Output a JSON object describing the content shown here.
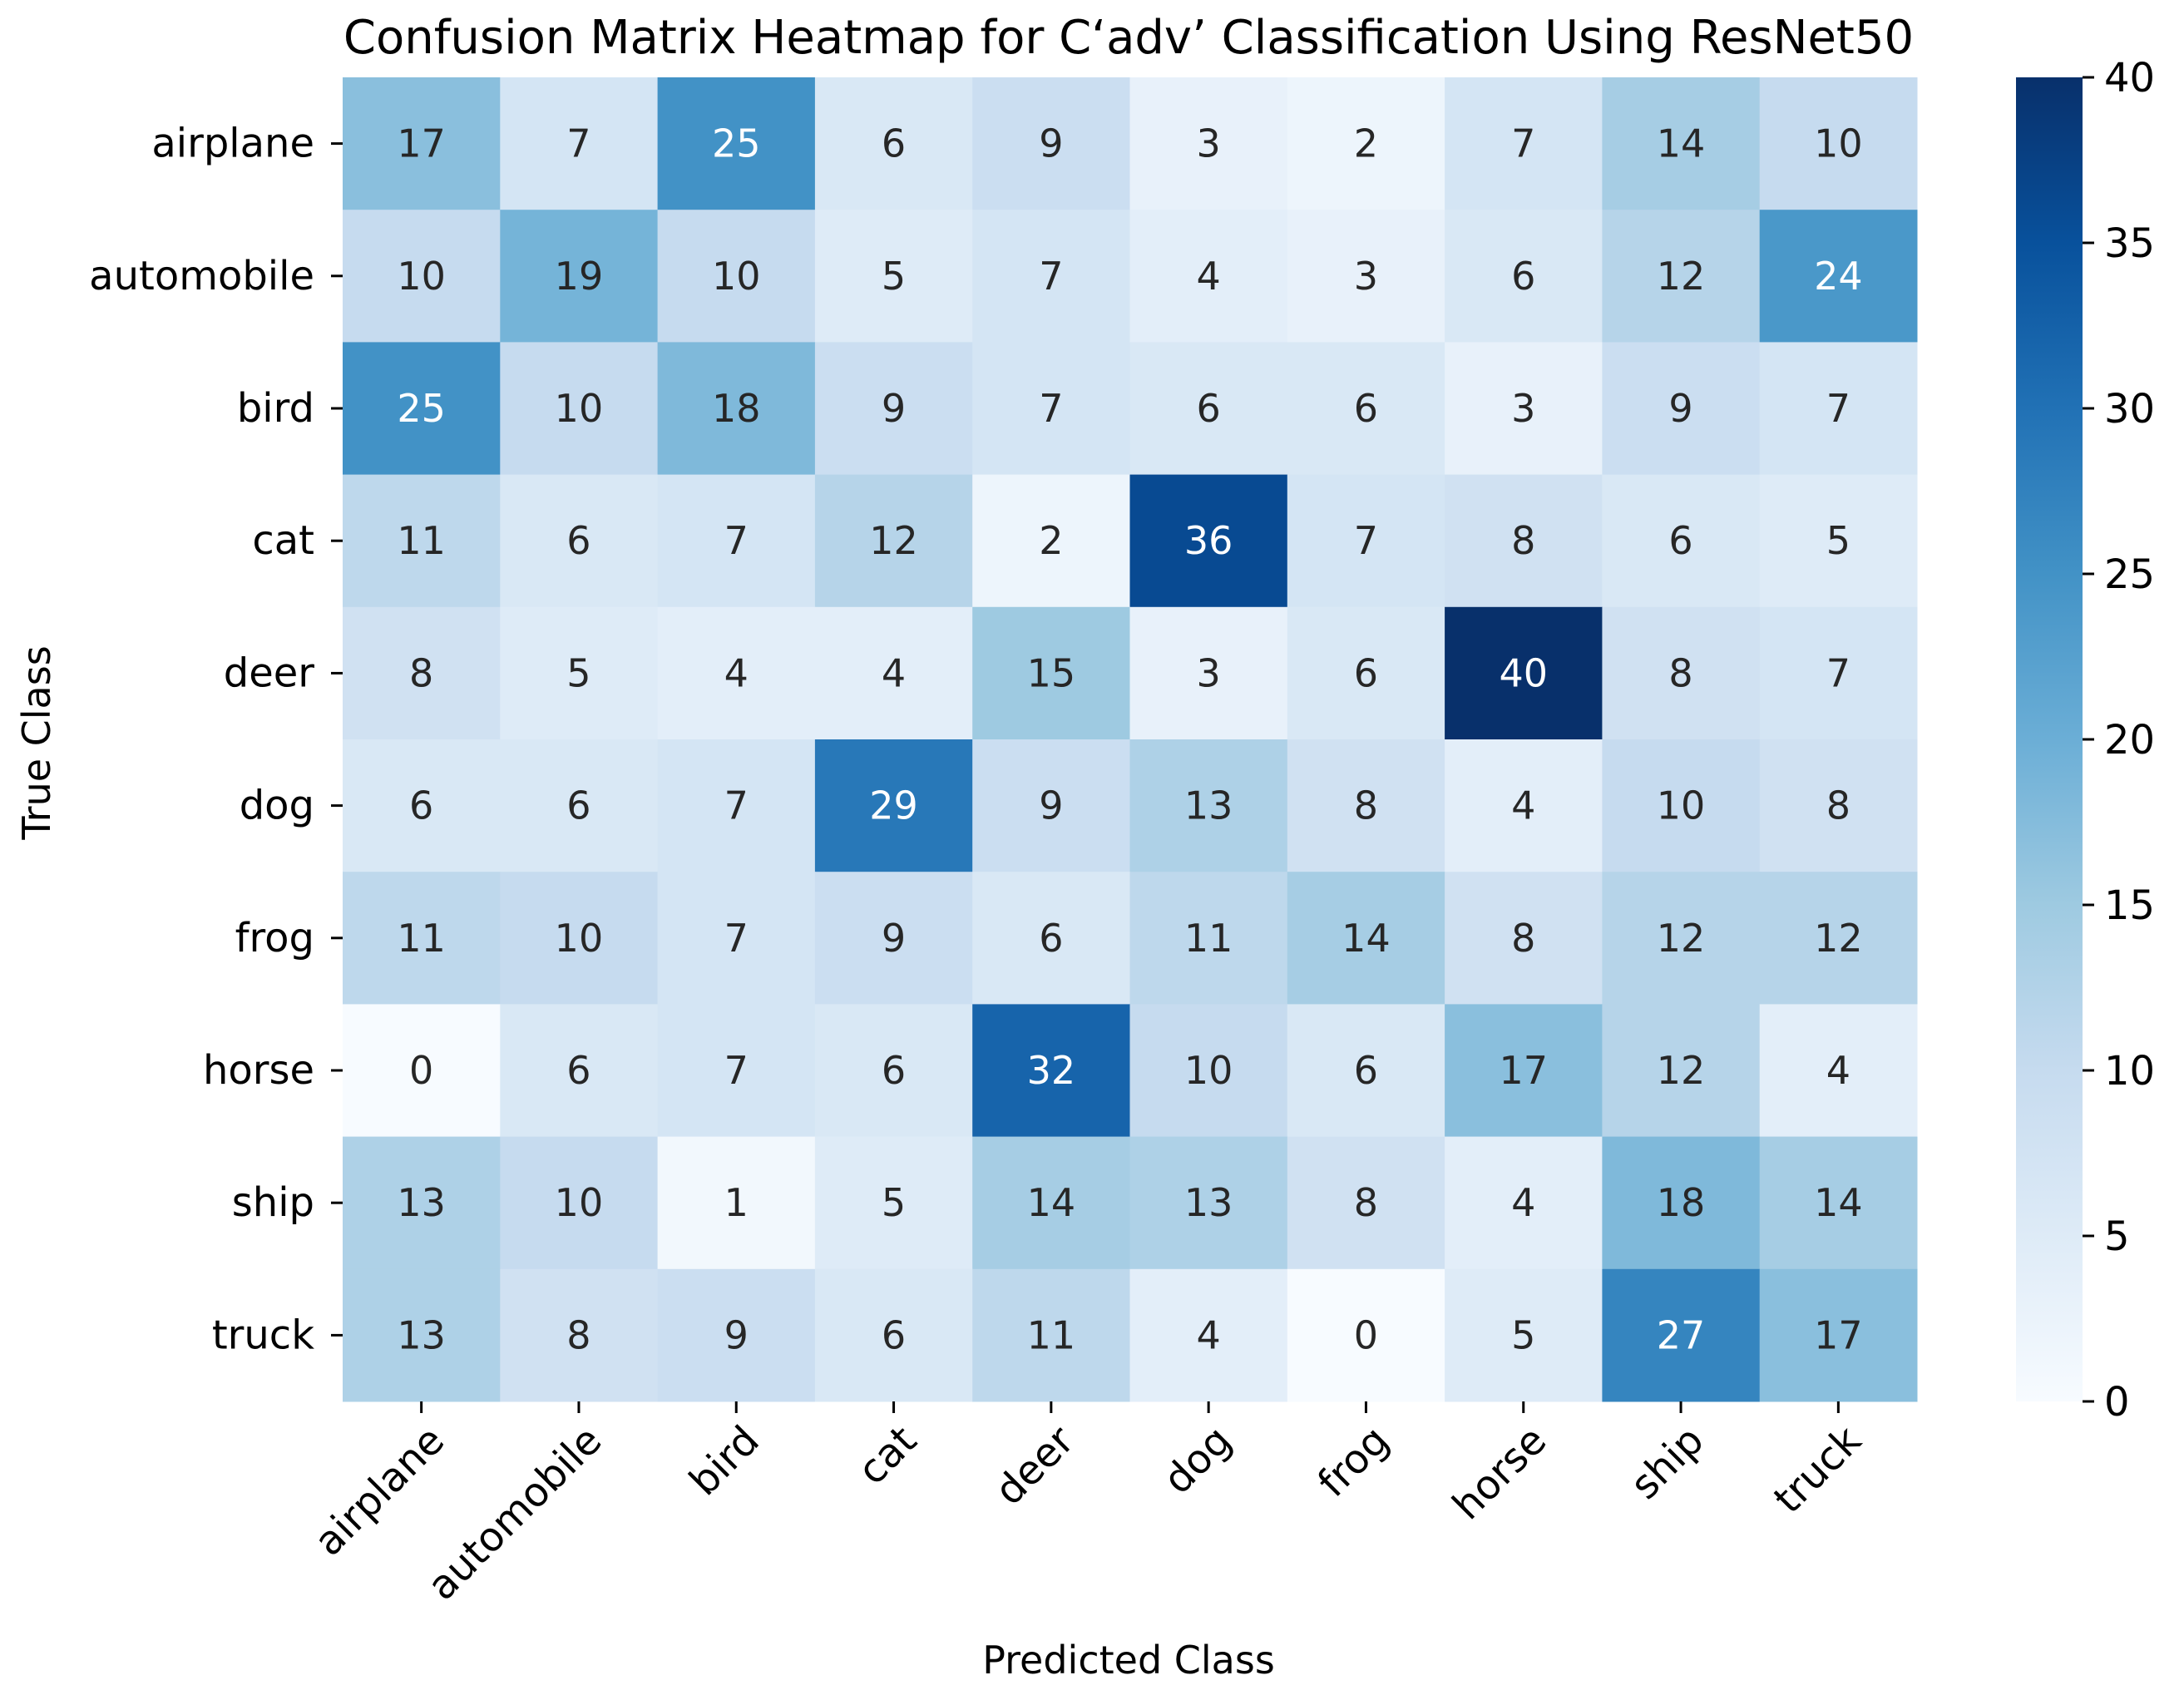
{
  "chart_data": {
    "type": "heatmap",
    "title": "Confusion Matrix Heatmap for C‘adv’ Classification Using ResNet50",
    "xlabel": "Predicted Class",
    "ylabel": "True Class",
    "x_categories": [
      "airplane",
      "automobile",
      "bird",
      "cat",
      "deer",
      "dog",
      "frog",
      "horse",
      "ship",
      "truck"
    ],
    "y_categories": [
      "airplane",
      "automobile",
      "bird",
      "cat",
      "deer",
      "dog",
      "frog",
      "horse",
      "ship",
      "truck"
    ],
    "matrix": [
      [
        17,
        7,
        25,
        6,
        9,
        3,
        2,
        7,
        14,
        10
      ],
      [
        10,
        19,
        10,
        5,
        7,
        4,
        3,
        6,
        12,
        24
      ],
      [
        25,
        10,
        18,
        9,
        7,
        6,
        6,
        3,
        9,
        7
      ],
      [
        11,
        6,
        7,
        12,
        2,
        36,
        7,
        8,
        6,
        5
      ],
      [
        8,
        5,
        4,
        4,
        15,
        3,
        6,
        40,
        8,
        7
      ],
      [
        6,
        6,
        7,
        29,
        9,
        13,
        8,
        4,
        10,
        8
      ],
      [
        11,
        10,
        7,
        9,
        6,
        11,
        14,
        8,
        12,
        12
      ],
      [
        0,
        6,
        7,
        6,
        32,
        10,
        6,
        17,
        12,
        4
      ],
      [
        13,
        10,
        1,
        5,
        14,
        13,
        8,
        4,
        18,
        14
      ],
      [
        13,
        8,
        9,
        6,
        11,
        4,
        0,
        5,
        27,
        17
      ]
    ],
    "colormap": "Blues",
    "vmin": 0,
    "vmax": 40,
    "colorbar_ticks": [
      0,
      5,
      10,
      15,
      20,
      25,
      30,
      35,
      40
    ],
    "annotated": true,
    "grid": false
  }
}
